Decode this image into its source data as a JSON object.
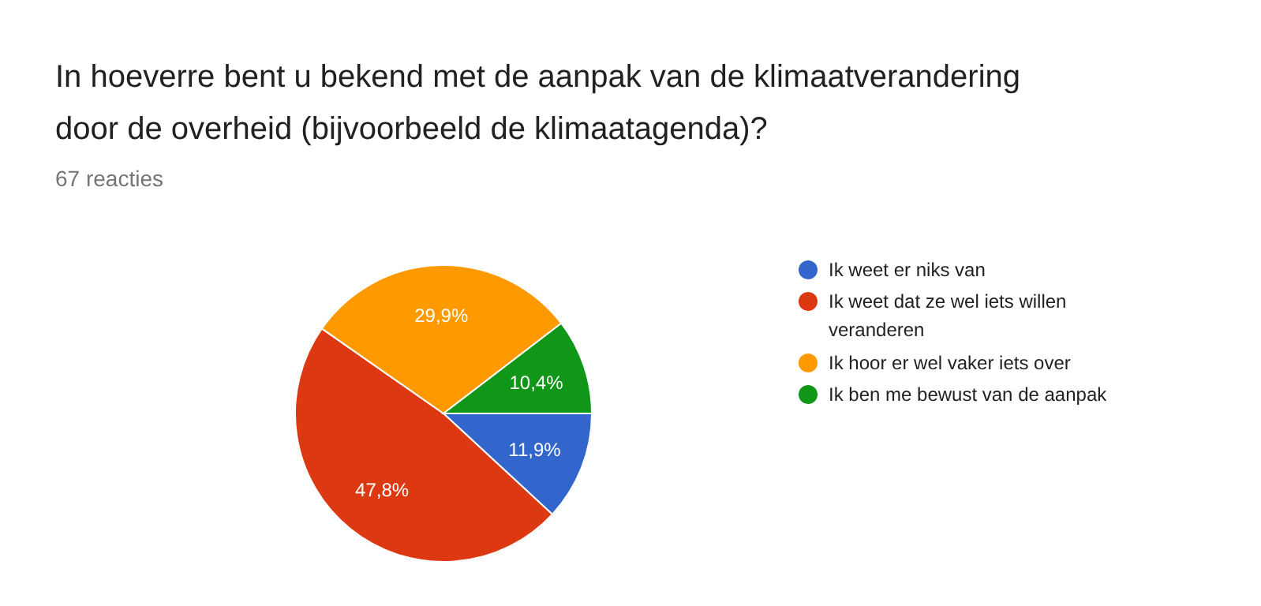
{
  "chart_data": {
    "type": "pie",
    "title": "In hoeverre bent u bekend met de aanpak van de klimaatverandering door de overheid (bijvoorbeeld de klimaatagenda)?",
    "subtitle": "67 reacties",
    "categories": [
      "Ik weet er niks van",
      "Ik weet dat ze wel iets willen veranderen",
      "Ik hoor er wel vaker iets over",
      "Ik ben me bewust van de aanpak"
    ],
    "values": [
      11.9,
      47.8,
      29.9,
      10.4
    ],
    "colors": [
      "#3366cc",
      "#dc3912",
      "#ff9900",
      "#109618"
    ],
    "value_labels": [
      "11,9%",
      "47,8%",
      "29,9%",
      "10,4%"
    ],
    "legend": "right"
  }
}
